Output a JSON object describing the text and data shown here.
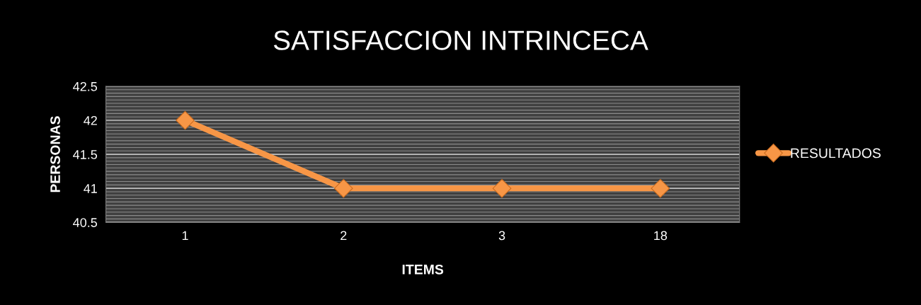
{
  "chart_data": {
    "type": "line",
    "title": "SATISFACCION INTRINCECA",
    "xlabel": "ITEMS",
    "ylabel": "PERSONAS",
    "categories": [
      "1",
      "2",
      "3",
      "18"
    ],
    "series": [
      {
        "name": "RESULTADOS",
        "color": "#f79646",
        "values": [
          42,
          41,
          41,
          41
        ]
      }
    ],
    "ylim": [
      40.5,
      42.5
    ],
    "yticks": [
      40.5,
      41,
      41.5,
      42,
      42.5
    ],
    "grid": "y",
    "legend": "right",
    "marker": "diamond",
    "line_style": "solid"
  }
}
